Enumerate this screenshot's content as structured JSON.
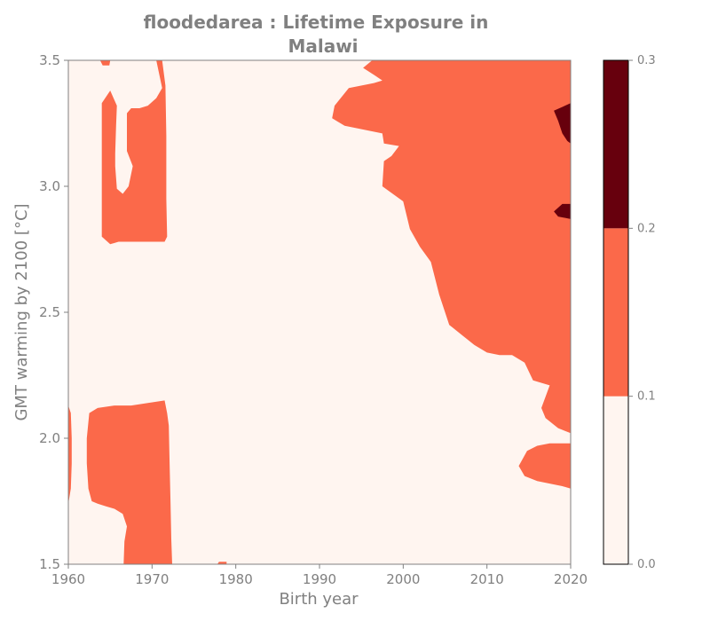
{
  "chart_data": {
    "type": "heatmap",
    "subtype": "filled-contour",
    "title_lines": [
      "floodedarea : Lifetime Exposure in",
      "Malawi"
    ],
    "xlabel": "Birth year",
    "ylabel": "GMT warming by 2100 [°C]",
    "xlim": [
      1960,
      2020
    ],
    "ylim": [
      1.5,
      3.5
    ],
    "xticks": [
      1960,
      1970,
      1980,
      1990,
      2000,
      2010,
      2020
    ],
    "yticks": [
      1.5,
      2.0,
      2.5,
      3.0,
      3.5
    ],
    "xtick_labels": [
      "1960",
      "1970",
      "1980",
      "1990",
      "2000",
      "2010",
      "2020"
    ],
    "ytick_labels": [
      "1.5",
      "2.0",
      "2.5",
      "3.0",
      "3.5"
    ],
    "colorbar": {
      "levels": [
        0.0,
        0.1,
        0.2,
        0.3
      ],
      "tick_labels": [
        "0.0",
        "0.1",
        "0.2",
        "0.3"
      ],
      "colors": [
        "#fff5f0",
        "#fb694a",
        "#67000d"
      ]
    },
    "background_color": "#fff5f0",
    "regions": [
      {
        "id": "region-top-right",
        "band": "0.1-0.2",
        "points": [
          [
            1996.3,
            3.5
          ],
          [
            1995.2,
            3.47
          ],
          [
            1996.6,
            3.44
          ],
          [
            1997.5,
            3.42
          ],
          [
            1996.5,
            3.41
          ],
          [
            1993.5,
            3.39
          ],
          [
            1991.8,
            3.32
          ],
          [
            1991.5,
            3.27
          ],
          [
            1993.0,
            3.24
          ],
          [
            1996.0,
            3.22
          ],
          [
            1997.5,
            3.21
          ],
          [
            1997.7,
            3.17
          ],
          [
            1999.5,
            3.16
          ],
          [
            1998.6,
            3.12
          ],
          [
            1997.7,
            3.1
          ],
          [
            1997.5,
            3.0
          ],
          [
            2000.0,
            2.94
          ],
          [
            2000.8,
            2.83
          ],
          [
            2002.0,
            2.76
          ],
          [
            2003.3,
            2.7
          ],
          [
            2004.3,
            2.57
          ],
          [
            2005.5,
            2.45
          ],
          [
            2007.0,
            2.41
          ],
          [
            2008.5,
            2.37
          ],
          [
            2010.0,
            2.34
          ],
          [
            2011.5,
            2.33
          ],
          [
            2013.0,
            2.33
          ],
          [
            2014.5,
            2.3
          ],
          [
            2015.5,
            2.23
          ],
          [
            2017.5,
            2.21
          ],
          [
            2016.5,
            2.12
          ],
          [
            2017.0,
            2.08
          ],
          [
            2018.5,
            2.04
          ],
          [
            2020.0,
            2.02
          ],
          [
            2020.0,
            3.5
          ]
        ]
      },
      {
        "id": "region-bottom-right",
        "band": "0.1-0.2",
        "points": [
          [
            2020.0,
            1.8
          ],
          [
            2019.0,
            1.81
          ],
          [
            2017.5,
            1.82
          ],
          [
            2016.0,
            1.83
          ],
          [
            2014.5,
            1.85
          ],
          [
            2013.8,
            1.89
          ],
          [
            2014.8,
            1.95
          ],
          [
            2016.0,
            1.97
          ],
          [
            2017.5,
            1.98
          ],
          [
            2020.0,
            1.98
          ]
        ]
      },
      {
        "id": "region-top-left",
        "band": "0.1-0.2",
        "points": [
          [
            1964.0,
            2.8
          ],
          [
            1965.0,
            2.77
          ],
          [
            1966.0,
            2.78
          ],
          [
            1967.5,
            2.78
          ],
          [
            1969.0,
            2.78
          ],
          [
            1970.5,
            2.78
          ],
          [
            1971.5,
            2.78
          ],
          [
            1971.8,
            2.8
          ],
          [
            1971.7,
            2.95
          ],
          [
            1971.7,
            3.2
          ],
          [
            1971.6,
            3.4
          ],
          [
            1971.2,
            3.5
          ],
          [
            1970.5,
            3.5
          ],
          [
            1971.2,
            3.39
          ],
          [
            1970.5,
            3.35
          ],
          [
            1969.5,
            3.32
          ],
          [
            1968.5,
            3.31
          ],
          [
            1967.5,
            3.31
          ],
          [
            1967.0,
            3.29
          ],
          [
            1967.0,
            3.14
          ],
          [
            1967.7,
            3.08
          ],
          [
            1967.2,
            3.0
          ],
          [
            1966.5,
            2.97
          ],
          [
            1965.8,
            2.99
          ],
          [
            1965.6,
            3.08
          ],
          [
            1965.6,
            3.13
          ],
          [
            1965.7,
            3.24
          ],
          [
            1965.8,
            3.32
          ],
          [
            1965.0,
            3.38
          ],
          [
            1964.0,
            3.33
          ],
          [
            1964.0,
            3.1
          ]
        ]
      },
      {
        "id": "region-top-left-strip",
        "band": "0.1-0.2",
        "points": [
          [
            1963.8,
            3.5
          ],
          [
            1965.0,
            3.5
          ],
          [
            1964.9,
            3.48
          ],
          [
            1964.1,
            3.48
          ]
        ]
      },
      {
        "id": "region-bottom-left",
        "band": "0.1-0.2",
        "points": [
          [
            1962.5,
            2.1
          ],
          [
            1963.5,
            2.12
          ],
          [
            1965.5,
            2.13
          ],
          [
            1967.5,
            2.13
          ],
          [
            1969.5,
            2.14
          ],
          [
            1971.5,
            2.15
          ],
          [
            1971.8,
            2.1
          ],
          [
            1972.0,
            2.05
          ],
          [
            1972.1,
            1.9
          ],
          [
            1972.2,
            1.75
          ],
          [
            1972.3,
            1.6
          ],
          [
            1972.4,
            1.5
          ],
          [
            1966.6,
            1.5
          ],
          [
            1966.7,
            1.59
          ],
          [
            1967.0,
            1.65
          ],
          [
            1966.5,
            1.7
          ],
          [
            1965.5,
            1.72
          ],
          [
            1964.5,
            1.73
          ],
          [
            1963.5,
            1.74
          ],
          [
            1962.8,
            1.75
          ],
          [
            1962.4,
            1.8
          ],
          [
            1962.2,
            1.9
          ],
          [
            1962.2,
            2.0
          ]
        ]
      },
      {
        "id": "region-left-edge",
        "band": "0.1-0.2",
        "points": [
          [
            1960.0,
            2.13
          ],
          [
            1960.3,
            2.1
          ],
          [
            1960.4,
            2.0
          ],
          [
            1960.4,
            1.9
          ],
          [
            1960.3,
            1.8
          ],
          [
            1960.0,
            1.74
          ]
        ]
      },
      {
        "id": "region-bottom-mid",
        "band": "0.1-0.2",
        "points": [
          [
            1977.8,
            1.5
          ],
          [
            1978.9,
            1.5
          ],
          [
            1978.9,
            1.51
          ],
          [
            1978.0,
            1.51
          ]
        ]
      },
      {
        "id": "region-dark-1",
        "band": "0.2-0.3",
        "points": [
          [
            2020.0,
            3.33
          ],
          [
            2018.0,
            3.3
          ],
          [
            2018.5,
            3.26
          ],
          [
            2019.0,
            3.21
          ],
          [
            2019.6,
            3.18
          ],
          [
            2020.0,
            3.17
          ]
        ]
      },
      {
        "id": "region-dark-2",
        "band": "0.2-0.3",
        "points": [
          [
            2020.0,
            2.93
          ],
          [
            2019.0,
            2.93
          ],
          [
            2018.0,
            2.9
          ],
          [
            2018.5,
            2.88
          ],
          [
            2020.0,
            2.87
          ]
        ]
      }
    ]
  }
}
